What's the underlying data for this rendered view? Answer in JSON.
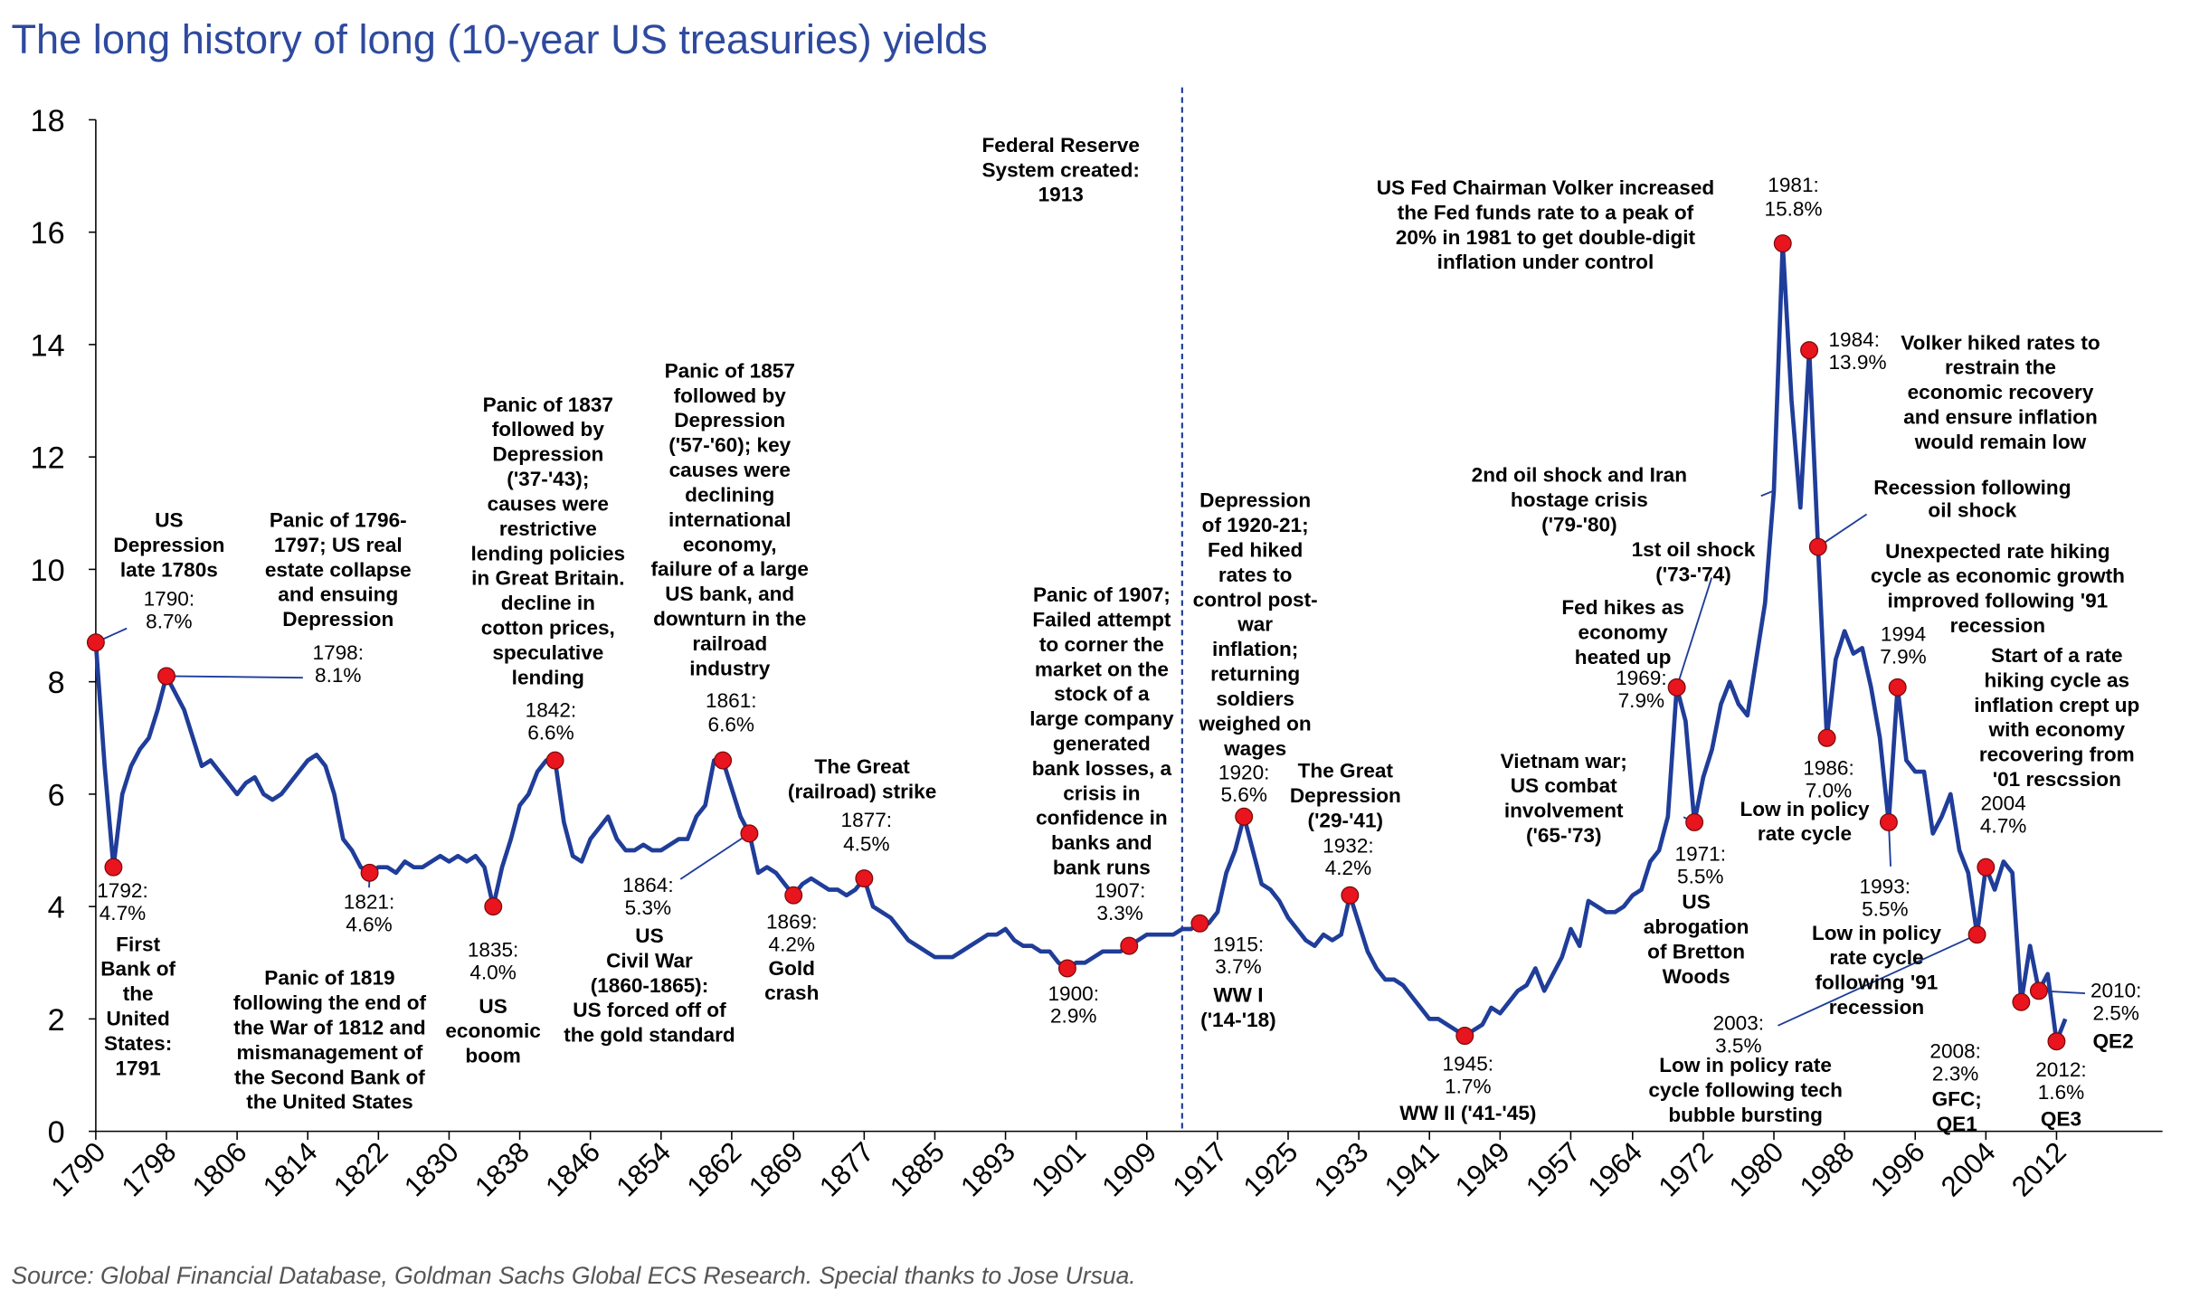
{
  "chart_data": {
    "type": "line",
    "title": "The long history of long (10-year US treasuries) yields",
    "source": "Source: Global Financial Database, Goldman Sachs Global ECS Research. Special thanks to Jose Ursua.",
    "x": [
      1790,
      1791,
      1792,
      1793,
      1794,
      1795,
      1796,
      1797,
      1798,
      1799,
      1800,
      1801,
      1802,
      1803,
      1804,
      1805,
      1806,
      1807,
      1808,
      1809,
      1810,
      1811,
      1812,
      1813,
      1814,
      1815,
      1816,
      1817,
      1818,
      1819,
      1820,
      1821,
      1822,
      1823,
      1824,
      1825,
      1826,
      1827,
      1828,
      1829,
      1830,
      1831,
      1832,
      1833,
      1834,
      1835,
      1836,
      1837,
      1838,
      1839,
      1840,
      1841,
      1842,
      1843,
      1844,
      1845,
      1846,
      1847,
      1848,
      1849,
      1850,
      1851,
      1852,
      1853,
      1854,
      1855,
      1856,
      1857,
      1858,
      1859,
      1860,
      1861,
      1862,
      1863,
      1864,
      1865,
      1866,
      1867,
      1868,
      1869,
      1870,
      1871,
      1872,
      1873,
      1874,
      1875,
      1876,
      1877,
      1878,
      1879,
      1880,
      1881,
      1882,
      1883,
      1884,
      1885,
      1886,
      1887,
      1888,
      1889,
      1890,
      1891,
      1892,
      1893,
      1894,
      1895,
      1896,
      1897,
      1898,
      1899,
      1900,
      1901,
      1902,
      1903,
      1904,
      1905,
      1906,
      1907,
      1908,
      1909,
      1910,
      1911,
      1912,
      1913,
      1914,
      1915,
      1916,
      1917,
      1918,
      1919,
      1920,
      1921,
      1922,
      1923,
      1924,
      1925,
      1926,
      1927,
      1928,
      1929,
      1930,
      1931,
      1932,
      1933,
      1934,
      1935,
      1936,
      1937,
      1938,
      1939,
      1940,
      1941,
      1942,
      1943,
      1944,
      1945,
      1946,
      1947,
      1948,
      1949,
      1950,
      1951,
      1952,
      1953,
      1954,
      1955,
      1956,
      1957,
      1958,
      1959,
      1960,
      1961,
      1962,
      1963,
      1964,
      1965,
      1966,
      1967,
      1968,
      1969,
      1970,
      1971,
      1972,
      1973,
      1974,
      1975,
      1976,
      1977,
      1978,
      1979,
      1980,
      1981,
      1982,
      1983,
      1984,
      1985,
      1986,
      1987,
      1988,
      1989,
      1990,
      1991,
      1992,
      1993,
      1994,
      1995,
      1996,
      1997,
      1998,
      1999,
      2000,
      2001,
      2002,
      2003,
      2004,
      2005,
      2006,
      2007,
      2008,
      2009,
      2010,
      2011,
      2012,
      2013
    ],
    "values": [
      8.7,
      6.5,
      4.7,
      6.0,
      6.5,
      6.8,
      7.0,
      7.5,
      8.1,
      7.8,
      7.5,
      7.0,
      6.5,
      6.6,
      6.4,
      6.2,
      6.0,
      6.2,
      6.3,
      6.0,
      5.9,
      6.0,
      6.2,
      6.4,
      6.6,
      6.7,
      6.5,
      6.0,
      5.2,
      5.0,
      4.7,
      4.6,
      4.7,
      4.7,
      4.6,
      4.8,
      4.7,
      4.7,
      4.8,
      4.9,
      4.8,
      4.9,
      4.8,
      4.9,
      4.7,
      4.0,
      4.7,
      5.2,
      5.8,
      6.0,
      6.4,
      6.6,
      6.6,
      5.5,
      4.9,
      4.8,
      5.2,
      5.4,
      5.6,
      5.2,
      5.0,
      5.0,
      5.1,
      5.0,
      5.0,
      5.1,
      5.2,
      5.2,
      5.6,
      5.8,
      6.6,
      6.6,
      6.1,
      5.6,
      5.3,
      4.6,
      4.7,
      4.6,
      4.4,
      4.2,
      4.4,
      4.5,
      4.4,
      4.3,
      4.3,
      4.2,
      4.3,
      4.5,
      4.0,
      3.9,
      3.8,
      3.6,
      3.4,
      3.3,
      3.2,
      3.1,
      3.1,
      3.1,
      3.2,
      3.3,
      3.4,
      3.5,
      3.5,
      3.6,
      3.4,
      3.3,
      3.3,
      3.2,
      3.2,
      3.0,
      2.9,
      3.0,
      3.0,
      3.1,
      3.2,
      3.2,
      3.2,
      3.3,
      3.4,
      3.5,
      3.5,
      3.5,
      3.5,
      3.6,
      3.6,
      3.7,
      3.7,
      3.9,
      4.6,
      5.0,
      5.6,
      5.0,
      4.4,
      4.3,
      4.1,
      3.8,
      3.6,
      3.4,
      3.3,
      3.5,
      3.4,
      3.5,
      4.2,
      3.7,
      3.2,
      2.9,
      2.7,
      2.7,
      2.6,
      2.4,
      2.2,
      2.0,
      2.0,
      1.9,
      1.8,
      1.7,
      1.8,
      1.9,
      2.2,
      2.1,
      2.3,
      2.5,
      2.6,
      2.9,
      2.5,
      2.8,
      3.1,
      3.6,
      3.3,
      4.1,
      4.0,
      3.9,
      3.9,
      4.0,
      4.2,
      4.3,
      4.8,
      5.0,
      5.6,
      7.9,
      7.3,
      5.5,
      6.3,
      6.8,
      7.6,
      8.0,
      7.6,
      7.4,
      8.4,
      9.4,
      11.4,
      15.8,
      13.0,
      11.1,
      13.9,
      10.4,
      7.0,
      8.4,
      8.9,
      8.5,
      8.6,
      7.9,
      7.0,
      5.5,
      7.9,
      6.6,
      6.4,
      6.4,
      5.3,
      5.6,
      6.0,
      5.0,
      4.6,
      3.5,
      4.7,
      4.3,
      4.8,
      4.6,
      2.3,
      3.3,
      2.5,
      2.8,
      1.6,
      2.0
    ],
    "color": "#1f3d99",
    "xlim": [
      1790,
      2024
    ],
    "ylim": [
      0,
      18
    ],
    "yticks": [
      0,
      2,
      4,
      6,
      8,
      10,
      12,
      14,
      16,
      18
    ],
    "xticks": [
      1790,
      1798,
      1806,
      1814,
      1822,
      1830,
      1838,
      1846,
      1854,
      1862,
      1869,
      1877,
      1885,
      1893,
      1901,
      1909,
      1917,
      1925,
      1933,
      1941,
      1949,
      1957,
      1964,
      1972,
      1980,
      1988,
      1996,
      2004,
      2012
    ],
    "marker_color": "#e8141e",
    "vline": {
      "x": 1913,
      "lines": [
        "Federal Reserve",
        "System created:",
        "1913"
      ]
    },
    "annotations": [
      {
        "x": 1790,
        "y": 8.7,
        "lines": [
          "1790:",
          "8.7%"
        ]
      },
      {
        "x": 1792,
        "y": 4.7,
        "lines": [
          "1792:",
          "4.7%"
        ]
      },
      {
        "x": 1798,
        "y": 8.1,
        "lines": [
          "1798:",
          "8.1%"
        ]
      },
      {
        "x": 1821,
        "y": 4.6,
        "lines": [
          "1821:",
          "4.6%"
        ]
      },
      {
        "x": 1835,
        "y": 4.0,
        "lines": [
          "1835:",
          "4.0%"
        ]
      },
      {
        "x": 1842,
        "y": 6.6,
        "lines": [
          "1842:",
          "6.6%"
        ]
      },
      {
        "x": 1861,
        "y": 6.6,
        "lines": [
          "1861:",
          "6.6%"
        ]
      },
      {
        "x": 1864,
        "y": 5.3,
        "lines": [
          "1864:",
          "5.3%"
        ]
      },
      {
        "x": 1869,
        "y": 4.2,
        "lines": [
          "1869:",
          "4.2%"
        ]
      },
      {
        "x": 1877,
        "y": 4.5,
        "lines": [
          "1877:",
          "4.5%"
        ]
      },
      {
        "x": 1900,
        "y": 2.9,
        "lines": [
          "1900:",
          "2.9%"
        ]
      },
      {
        "x": 1907,
        "y": 3.3,
        "lines": [
          "1907:",
          "3.3%"
        ]
      },
      {
        "x": 1915,
        "y": 3.7,
        "lines": [
          "1915:",
          "3.7%"
        ]
      },
      {
        "x": 1920,
        "y": 5.6,
        "lines": [
          "1920:",
          "5.6%"
        ]
      },
      {
        "x": 1932,
        "y": 4.2,
        "lines": [
          "1932:",
          "4.2%"
        ]
      },
      {
        "x": 1945,
        "y": 1.7,
        "lines": [
          "1945:",
          "1.7%"
        ]
      },
      {
        "x": 1969,
        "y": 7.9,
        "lines": [
          "1969:",
          "7.9%"
        ]
      },
      {
        "x": 1971,
        "y": 5.5,
        "lines": [
          "1971:",
          "5.5%"
        ]
      },
      {
        "x": 1981,
        "y": 15.8,
        "lines": [
          "1981:",
          "15.8%"
        ]
      },
      {
        "x": 1984,
        "y": 13.9,
        "lines": [
          "1984:",
          "13.9%"
        ]
      },
      {
        "x": 1985,
        "y": 10.4,
        "lines": [
          "Recession following",
          "oil shock"
        ]
      },
      {
        "x": 1986,
        "y": 7.0,
        "lines": [
          "1986:",
          "7.0%"
        ]
      },
      {
        "x": 1993,
        "y": 5.5,
        "lines": [
          "1993:",
          "5.5%"
        ]
      },
      {
        "x": 1994,
        "y": 7.9,
        "lines": [
          "1994",
          "7.9%"
        ]
      },
      {
        "x": 2003,
        "y": 3.5,
        "lines": [
          "2003:",
          "3.5%"
        ]
      },
      {
        "x": 2004,
        "y": 4.7,
        "lines": [
          "2004",
          "4.7%"
        ]
      },
      {
        "x": 2008,
        "y": 2.3,
        "lines": [
          "2008:",
          "2.3%"
        ]
      },
      {
        "x": 2010,
        "y": 2.5,
        "lines": [
          "2010:",
          "2.5%"
        ]
      },
      {
        "x": 2012,
        "y": 1.6,
        "lines": [
          "2012:",
          "1.6%"
        ]
      }
    ],
    "notes": [
      {
        "lines": [
          "US",
          "Depression",
          "late 1780s"
        ]
      },
      {
        "lines": [
          "First",
          "Bank of",
          "the",
          "United",
          "States:",
          "1791"
        ]
      },
      {
        "lines": [
          "Panic of 1796-",
          "1797; US real",
          "estate collapse",
          "and ensuing",
          "Depression"
        ]
      },
      {
        "lines": [
          "Panic of 1819",
          "following the end of",
          "the War of 1812 and",
          "mismanagement of",
          "the Second Bank of",
          "the United States"
        ]
      },
      {
        "lines": [
          "US",
          "economic",
          "boom"
        ]
      },
      {
        "lines": [
          "Panic of 1837",
          "followed by",
          "Depression",
          "('37-'43);",
          "causes were",
          "restrictive",
          "lending policies",
          "in Great Britain.",
          "decline in",
          "cotton prices,",
          "speculative",
          "lending"
        ]
      },
      {
        "lines": [
          "Panic of 1857",
          "followed by",
          "Depression",
          "('57-'60); key",
          "causes were",
          "declining",
          "international",
          "economy,",
          "failure of a large",
          "US bank, and",
          "downturn in the",
          "railroad",
          "industry"
        ]
      },
      {
        "lines": [
          "US",
          "Civil War",
          "(1860-1865):",
          "US forced off of",
          "the gold standard"
        ]
      },
      {
        "lines": [
          "Gold",
          "crash"
        ]
      },
      {
        "lines": [
          "The Great",
          "(railroad) strike"
        ]
      },
      {
        "lines": [
          "Panic of 1907;",
          "Failed attempt",
          "to corner the",
          "market on the",
          "stock of a",
          "large company",
          "generated",
          "bank losses, a",
          "crisis in",
          "confidence in",
          "banks and",
          "bank runs"
        ]
      },
      {
        "lines": [
          "Depression",
          "of 1920-21;",
          "Fed hiked",
          "rates to",
          "control post-",
          "war",
          "inflation;",
          "returning",
          "soldiers",
          "weighed on",
          "wages"
        ]
      },
      {
        "lines": [
          "WW I",
          "('14-'18)"
        ]
      },
      {
        "lines": [
          "The Great",
          "Depression",
          "('29-'41)"
        ]
      },
      {
        "lines": [
          "WW II ('41-'45)"
        ]
      },
      {
        "lines": [
          "US Fed Chairman Volker increased",
          "the Fed funds rate to a peak of",
          "20% in 1981 to get double-digit",
          "inflation under control"
        ]
      },
      {
        "lines": [
          "2nd oil shock and Iran",
          "hostage crisis",
          "('79-'80)"
        ]
      },
      {
        "lines": [
          "1st oil shock",
          "('73-'74)"
        ]
      },
      {
        "lines": [
          "Fed hikes as",
          "economy",
          "heated up"
        ]
      },
      {
        "lines": [
          "Vietnam  war;",
          "US combat",
          "involvement",
          "('65-'73)"
        ]
      },
      {
        "lines": [
          "US",
          "abrogation",
          "of Bretton",
          "Woods"
        ]
      },
      {
        "lines": [
          "Volker hiked rates to",
          "restrain the",
          "economic recovery",
          "and ensure inflation",
          "would remain low"
        ]
      },
      {
        "lines": [
          "Unexpected rate hiking",
          "cycle as economic growth",
          "improved following '91",
          "recession"
        ]
      },
      {
        "lines": [
          "Low in policy",
          "rate cycle"
        ]
      },
      {
        "lines": [
          "Low in policy",
          "rate cycle",
          "following '91",
          "recession"
        ]
      },
      {
        "lines": [
          "Start of a rate",
          "hiking cycle as",
          "inflation crept up",
          "with economy",
          "recovering from",
          "'01 rescssion"
        ]
      },
      {
        "lines": [
          "Low in policy rate",
          "cycle following tech",
          "bubble bursting"
        ]
      },
      {
        "lines": [
          "GFC;",
          "QE1"
        ]
      },
      {
        "lines": [
          "QE2"
        ]
      },
      {
        "lines": [
          "QE3"
        ]
      }
    ]
  }
}
